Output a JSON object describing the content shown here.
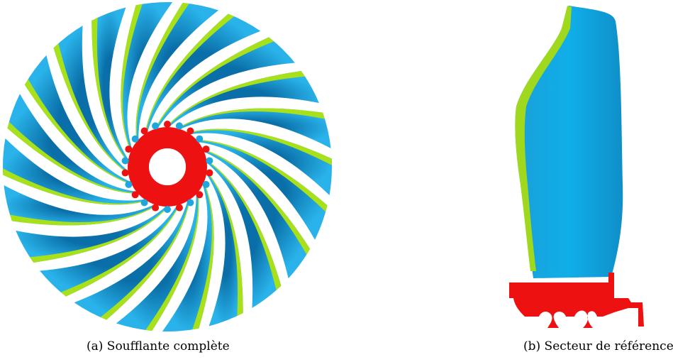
{
  "figure": {
    "subfigures": [
      {
        "label": "(a)",
        "caption": "(a) Soufflante complète"
      },
      {
        "label": "(b)",
        "caption": "(b) Secteur de référence"
      }
    ],
    "colors": {
      "blade_blue": "#1ea6df",
      "blade_blue_dark": "#0a6fa8",
      "leading_edge_green": "#a8e01a",
      "hub_red": "#ee1111",
      "background": "#ffffff"
    },
    "fan": {
      "blade_count": 22
    }
  }
}
